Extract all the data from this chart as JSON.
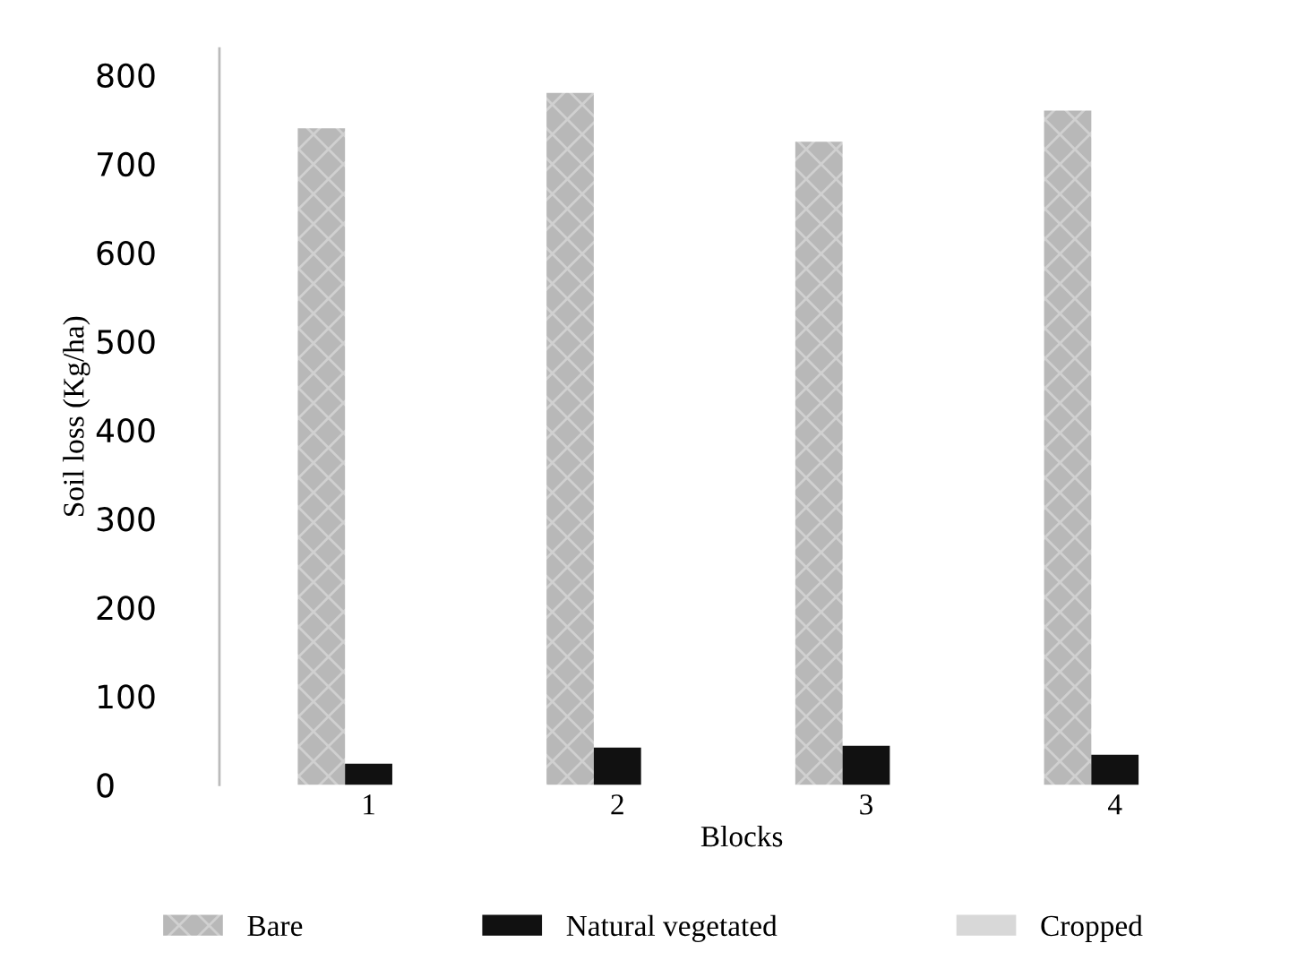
{
  "chart_data": {
    "type": "bar",
    "xlabel": "Blocks",
    "ylabel": "Soil loss (Kg/ha)",
    "categories": [
      "1",
      "2",
      "3",
      "4"
    ],
    "series": [
      {
        "name": "Bare",
        "color": "#b8b8b8",
        "values": [
          740,
          780,
          725,
          760
        ]
      },
      {
        "name": "Natural vegetated",
        "color": "#111111",
        "values": [
          24,
          42,
          44,
          34
        ]
      },
      {
        "name": "Cropped",
        "color": "#d8d8d8",
        "values": [
          null,
          null,
          null,
          null
        ]
      }
    ],
    "ylim": [
      0,
      830
    ],
    "yticks": [
      0,
      100,
      200,
      300,
      400,
      500,
      600,
      700,
      800
    ],
    "grid": false,
    "legend": "bottom"
  }
}
